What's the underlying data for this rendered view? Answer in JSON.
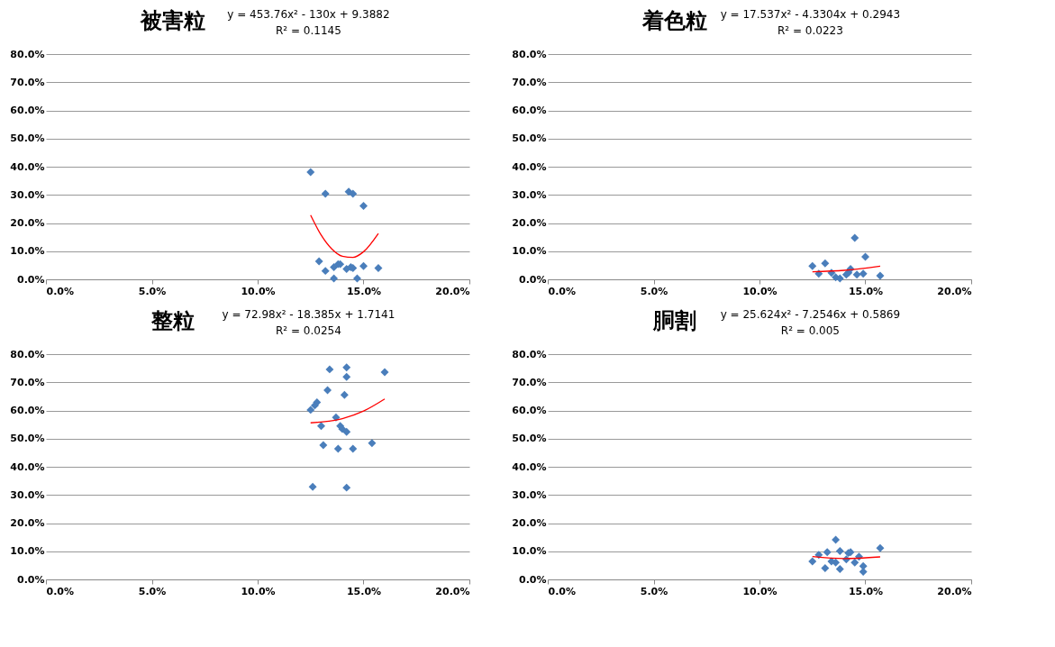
{
  "chart_data": [
    {
      "type": "scatter",
      "title": "被害粒",
      "annotations": [
        "y = 453.76x² - 130x + 9.3882",
        "R² = 0.1145"
      ],
      "xlim": [
        0,
        0.2
      ],
      "xticks": [
        {
          "value": 0,
          "label": "0.0%"
        },
        {
          "value": 0.05,
          "label": "5.0%"
        },
        {
          "value": 0.1,
          "label": "10.0%"
        },
        {
          "value": 0.15,
          "label": "15.0%"
        },
        {
          "value": 0.2,
          "label": "20.0%"
        }
      ],
      "ylim": [
        0,
        0.8
      ],
      "yticks": [
        {
          "value": 0,
          "label": "0.0%"
        },
        {
          "value": 0.1,
          "label": "10.0%"
        },
        {
          "value": 0.2,
          "label": "20.0%"
        },
        {
          "value": 0.3,
          "label": "30.0%"
        },
        {
          "value": 0.4,
          "label": "40.0%"
        },
        {
          "value": 0.5,
          "label": "50.0%"
        },
        {
          "value": 0.6,
          "label": "60.0%"
        },
        {
          "value": 0.7,
          "label": "70.0%"
        },
        {
          "value": 0.8,
          "label": "80.0%"
        }
      ],
      "grid": "y",
      "legend": false,
      "marker": "diamond",
      "series": [
        {
          "type": "scatter",
          "color": "#4a7ebb",
          "x": [
            0.125,
            0.132,
            0.143,
            0.145,
            0.15,
            0.129,
            0.132,
            0.136,
            0.136,
            0.138,
            0.139,
            0.142,
            0.144,
            0.145,
            0.147,
            0.15,
            0.157
          ],
          "values": [
            0.381,
            0.304,
            0.311,
            0.304,
            0.261,
            0.064,
            0.03,
            0.003,
            0.043,
            0.054,
            0.054,
            0.037,
            0.043,
            0.04,
            0.003,
            0.047,
            0.04
          ]
        },
        {
          "type": "line",
          "marker": "none",
          "color": "#ff0000",
          "x": [
            0.125,
            0.13,
            0.135,
            0.14,
            0.145,
            0.15,
            0.157
          ],
          "values": [
            0.228,
            0.157,
            0.108,
            0.082,
            0.078,
            0.098,
            0.163
          ]
        }
      ]
    },
    {
      "type": "scatter",
      "title": "着色粒",
      "annotations": [
        "y = 17.537x² - 4.3304x + 0.2943",
        "R² = 0.0223"
      ],
      "xlim": [
        0,
        0.2
      ],
      "xticks": [
        {
          "value": 0,
          "label": "0.0%"
        },
        {
          "value": 0.05,
          "label": "5.0%"
        },
        {
          "value": 0.1,
          "label": "10.0%"
        },
        {
          "value": 0.15,
          "label": "15.0%"
        },
        {
          "value": 0.2,
          "label": "20.0%"
        }
      ],
      "ylim": [
        0,
        0.8
      ],
      "yticks": [
        {
          "value": 0,
          "label": "0.0%"
        },
        {
          "value": 0.1,
          "label": "10.0%"
        },
        {
          "value": 0.2,
          "label": "20.0%"
        },
        {
          "value": 0.3,
          "label": "30.0%"
        },
        {
          "value": 0.4,
          "label": "40.0%"
        },
        {
          "value": 0.5,
          "label": "50.0%"
        },
        {
          "value": 0.6,
          "label": "60.0%"
        },
        {
          "value": 0.7,
          "label": "70.0%"
        },
        {
          "value": 0.8,
          "label": "80.0%"
        }
      ],
      "grid": "y",
      "legend": false,
      "marker": "diamond",
      "series": [
        {
          "type": "scatter",
          "color": "#4a7ebb",
          "x": [
            0.125,
            0.131,
            0.145,
            0.15,
            0.157,
            0.128,
            0.134,
            0.136,
            0.138,
            0.141,
            0.142,
            0.143,
            0.146,
            0.149
          ],
          "values": [
            0.047,
            0.057,
            0.147,
            0.08,
            0.013,
            0.02,
            0.023,
            0.007,
            0.003,
            0.017,
            0.023,
            0.037,
            0.017,
            0.02
          ]
        },
        {
          "type": "line",
          "marker": "none",
          "color": "#ff0000",
          "x": [
            0.125,
            0.14,
            0.157
          ],
          "values": [
            0.027,
            0.032,
            0.047
          ]
        }
      ]
    },
    {
      "type": "scatter",
      "title": "整粒",
      "annotations": [
        "y = 72.98x² - 18.385x + 1.7141",
        "R² = 0.0254"
      ],
      "xlim": [
        0,
        0.2
      ],
      "xticks": [
        {
          "value": 0,
          "label": "0.0%"
        },
        {
          "value": 0.05,
          "label": "5.0%"
        },
        {
          "value": 0.1,
          "label": "10.0%"
        },
        {
          "value": 0.15,
          "label": "15.0%"
        },
        {
          "value": 0.2,
          "label": "20.0%"
        }
      ],
      "ylim": [
        0,
        0.8
      ],
      "yticks": [
        {
          "value": 0,
          "label": "0.0%"
        },
        {
          "value": 0.1,
          "label": "10.0%"
        },
        {
          "value": 0.2,
          "label": "20.0%"
        },
        {
          "value": 0.3,
          "label": "30.0%"
        },
        {
          "value": 0.4,
          "label": "40.0%"
        },
        {
          "value": 0.5,
          "label": "50.0%"
        },
        {
          "value": 0.6,
          "label": "60.0%"
        },
        {
          "value": 0.7,
          "label": "70.0%"
        },
        {
          "value": 0.8,
          "label": "80.0%"
        }
      ],
      "grid": "y",
      "legend": false,
      "marker": "diamond",
      "series": [
        {
          "type": "scatter",
          "color": "#4a7ebb",
          "x": [
            0.134,
            0.142,
            0.142,
            0.16,
            0.133,
            0.141,
            0.128,
            0.127,
            0.125,
            0.137,
            0.13,
            0.139,
            0.14,
            0.142,
            0.131,
            0.138,
            0.145,
            0.154,
            0.126,
            0.142
          ],
          "values": [
            0.746,
            0.753,
            0.719,
            0.736,
            0.672,
            0.655,
            0.629,
            0.618,
            0.602,
            0.575,
            0.545,
            0.545,
            0.534,
            0.524,
            0.477,
            0.464,
            0.464,
            0.484,
            0.329,
            0.326
          ]
        },
        {
          "type": "line",
          "marker": "none",
          "color": "#ff0000",
          "x": [
            0.125,
            0.14,
            0.15,
            0.16
          ],
          "values": [
            0.556,
            0.571,
            0.598,
            0.641
          ]
        }
      ]
    },
    {
      "type": "scatter",
      "title": "胴割",
      "annotations": [
        "y = 25.624x² - 7.2546x + 0.5869",
        "R² = 0.005"
      ],
      "xlim": [
        0,
        0.2
      ],
      "xticks": [
        {
          "value": 0,
          "label": "0.0%"
        },
        {
          "value": 0.05,
          "label": "5.0%"
        },
        {
          "value": 0.1,
          "label": "10.0%"
        },
        {
          "value": 0.15,
          "label": "15.0%"
        },
        {
          "value": 0.2,
          "label": "20.0%"
        }
      ],
      "ylim": [
        0,
        0.8
      ],
      "yticks": [
        {
          "value": 0,
          "label": "0.0%"
        },
        {
          "value": 0.1,
          "label": "10.0%"
        },
        {
          "value": 0.2,
          "label": "20.0%"
        },
        {
          "value": 0.3,
          "label": "30.0%"
        },
        {
          "value": 0.4,
          "label": "40.0%"
        },
        {
          "value": 0.5,
          "label": "50.0%"
        },
        {
          "value": 0.6,
          "label": "60.0%"
        },
        {
          "value": 0.7,
          "label": "70.0%"
        },
        {
          "value": 0.8,
          "label": "80.0%"
        }
      ],
      "grid": "y",
      "legend": false,
      "marker": "diamond",
      "series": [
        {
          "type": "scatter",
          "color": "#4a7ebb",
          "x": [
            0.136,
            0.157,
            0.125,
            0.128,
            0.132,
            0.131,
            0.138,
            0.136,
            0.138,
            0.142,
            0.143,
            0.145,
            0.147,
            0.149,
            0.149,
            0.141,
            0.134
          ],
          "values": [
            0.141,
            0.111,
            0.064,
            0.087,
            0.097,
            0.04,
            0.101,
            0.06,
            0.037,
            0.094,
            0.097,
            0.06,
            0.081,
            0.047,
            0.027,
            0.071,
            0.064
          ]
        },
        {
          "type": "line",
          "marker": "none",
          "color": "#ff0000",
          "x": [
            0.125,
            0.14,
            0.157
          ],
          "values": [
            0.081,
            0.074,
            0.08
          ]
        }
      ]
    }
  ]
}
